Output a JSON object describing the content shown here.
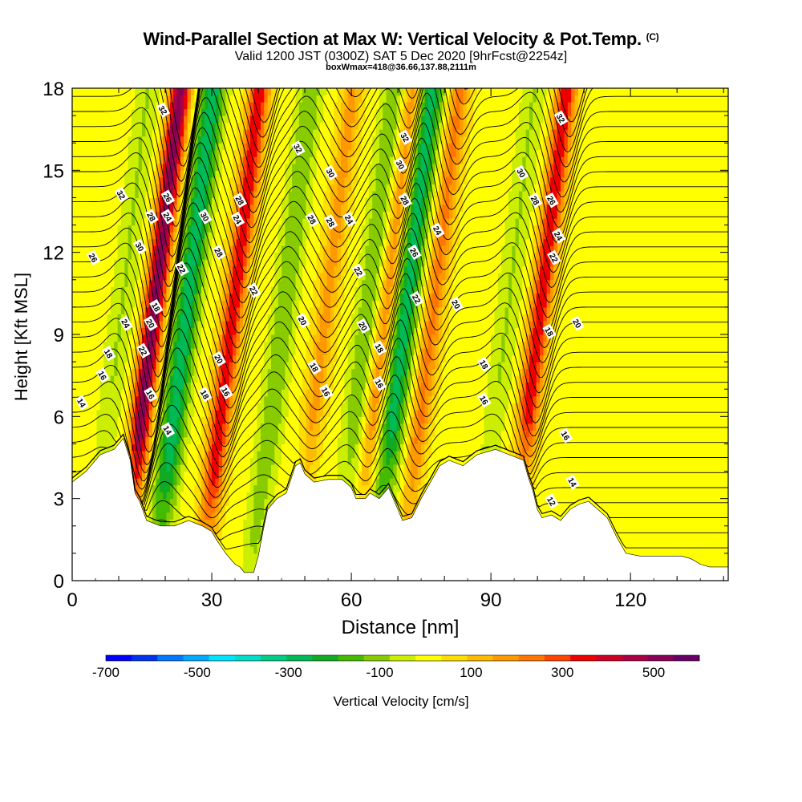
{
  "header": {
    "title": "Wind-Parallel Section at Max W: Vertical Velocity & Pot.Temp.",
    "copyright": "(C)",
    "line2": "Valid 1200 JST (0300Z) SAT 5 Dec 2020 [9hrFcst@2254z]",
    "line3": "boxWmax=418@36.66,137.88,2111m"
  },
  "chart_data": {
    "type": "heatmap",
    "xlabel": "Distance [nm]",
    "ylabel": "Height [Kft MSL]",
    "xlim": [
      0,
      141
    ],
    "ylim": [
      0,
      18
    ],
    "x_ticks": [
      "0",
      "30",
      "60",
      "90",
      "120"
    ],
    "x_tick_values": [
      0,
      30,
      60,
      90,
      120
    ],
    "y_ticks": [
      "0",
      "3",
      "6",
      "9",
      "12",
      "15",
      "18"
    ],
    "y_tick_values": [
      0,
      3,
      6,
      9,
      12,
      15,
      18
    ],
    "colorbar": {
      "label": "Vertical Velocity [cm/s]",
      "tick_labels": [
        "-700",
        "-500",
        "-300",
        "-100",
        "100",
        "300",
        "500"
      ],
      "tick_values": [
        -700,
        -500,
        -300,
        -100,
        100,
        300,
        500
      ],
      "range": [
        -700,
        600
      ],
      "colors": [
        "#0000ff",
        "#0033ee",
        "#0077ff",
        "#00aaff",
        "#00e5ff",
        "#00ddc8",
        "#00cc88",
        "#00bb55",
        "#11aa22",
        "#44bb00",
        "#88cc00",
        "#ccee00",
        "#ffff00",
        "#ffdd00",
        "#ffbb00",
        "#ff9900",
        "#ff7700",
        "#ff4400",
        "#ee0000",
        "#cc0022",
        "#aa0044",
        "#880055",
        "#660066"
      ]
    },
    "terrain_kft": [
      [
        0,
        3.6
      ],
      [
        3,
        4.0
      ],
      [
        6,
        4.6
      ],
      [
        9,
        4.8
      ],
      [
        11,
        5.2
      ],
      [
        12.5,
        4.4
      ],
      [
        13.5,
        3.2
      ],
      [
        14.5,
        2.9
      ],
      [
        16,
        2.2
      ],
      [
        19,
        2.0
      ],
      [
        22,
        2.0
      ],
      [
        25,
        2.2
      ],
      [
        28,
        2.0
      ],
      [
        30,
        1.8
      ],
      [
        31,
        1.5
      ],
      [
        33,
        1.0
      ],
      [
        35,
        0.6
      ],
      [
        36,
        0.5
      ],
      [
        37,
        0.3
      ],
      [
        39,
        0.3
      ],
      [
        40,
        0.9
      ],
      [
        41,
        1.8
      ],
      [
        42,
        2.6
      ],
      [
        44,
        3.0
      ],
      [
        46,
        3.2
      ],
      [
        47,
        3.7
      ],
      [
        48,
        4.2
      ],
      [
        49,
        4.3
      ],
      [
        50,
        3.9
      ],
      [
        52,
        3.6
      ],
      [
        55,
        3.7
      ],
      [
        58,
        3.7
      ],
      [
        60,
        3.4
      ],
      [
        61,
        3.0
      ],
      [
        63,
        3.0
      ],
      [
        64,
        3.2
      ],
      [
        66,
        3.0
      ],
      [
        68,
        3.4
      ],
      [
        70,
        2.6
      ],
      [
        71,
        2.2
      ],
      [
        73,
        2.3
      ],
      [
        75,
        3.0
      ],
      [
        77,
        3.6
      ],
      [
        79,
        4.2
      ],
      [
        81,
        4.4
      ],
      [
        84,
        4.2
      ],
      [
        87,
        4.6
      ],
      [
        91,
        4.8
      ],
      [
        94,
        4.6
      ],
      [
        97,
        4.4
      ],
      [
        98,
        3.8
      ],
      [
        99,
        3.3
      ],
      [
        100,
        2.6
      ],
      [
        101,
        2.3
      ],
      [
        103,
        2.4
      ],
      [
        105,
        2.2
      ],
      [
        107,
        2.6
      ],
      [
        109,
        2.8
      ],
      [
        111,
        2.9
      ],
      [
        113,
        2.6
      ],
      [
        115,
        2.3
      ],
      [
        117,
        1.6
      ],
      [
        119,
        1.0
      ],
      [
        122,
        0.9
      ],
      [
        125,
        0.9
      ],
      [
        128,
        0.9
      ],
      [
        131,
        0.9
      ],
      [
        133,
        0.8
      ],
      [
        135,
        0.6
      ],
      [
        137,
        0.5
      ],
      [
        140,
        0.5
      ],
      [
        141,
        0.5
      ]
    ],
    "updraft_bands": [
      {
        "x": 17,
        "peak_cm_s": 500
      },
      {
        "x": 34,
        "peak_cm_s": 350
      },
      {
        "x": 54,
        "peak_cm_s": 150
      },
      {
        "x": 67,
        "peak_cm_s": 200
      },
      {
        "x": 77,
        "peak_cm_s": 200
      },
      {
        "x": 100,
        "peak_cm_s": 350
      }
    ],
    "downdraft_bands": [
      {
        "x": 10,
        "peak_cm_s": -100
      },
      {
        "x": 24,
        "peak_cm_s": -300
      },
      {
        "x": 45,
        "peak_cm_s": -150
      },
      {
        "x": 63,
        "peak_cm_s": -150
      },
      {
        "x": 71,
        "peak_cm_s": -300
      },
      {
        "x": 93,
        "peak_cm_s": -100
      }
    ],
    "theta_contours": [
      "12",
      "14",
      "16",
      "18",
      "20",
      "22",
      "24",
      "26",
      "28",
      "30",
      "32"
    ],
    "contour_labels": [
      {
        "text": "32",
        "x": 19.5,
        "y": 17.2
      },
      {
        "text": "32",
        "x": 10.5,
        "y": 14.1
      },
      {
        "text": "26",
        "x": 20.5,
        "y": 14.0
      },
      {
        "text": "28",
        "x": 17,
        "y": 13.3
      },
      {
        "text": "24",
        "x": 20.5,
        "y": 13.3
      },
      {
        "text": "30",
        "x": 28.5,
        "y": 13.3
      },
      {
        "text": "28",
        "x": 36,
        "y": 13.9
      },
      {
        "text": "24",
        "x": 35.5,
        "y": 13.2
      },
      {
        "text": "28",
        "x": 31.5,
        "y": 12.0
      },
      {
        "text": "26",
        "x": 4.5,
        "y": 11.8
      },
      {
        "text": "30",
        "x": 14.5,
        "y": 12.2
      },
      {
        "text": "22",
        "x": 23.5,
        "y": 11.4
      },
      {
        "text": "22",
        "x": 39,
        "y": 10.6
      },
      {
        "text": "18",
        "x": 18,
        "y": 10.0
      },
      {
        "text": "24",
        "x": 11.5,
        "y": 9.4
      },
      {
        "text": "20",
        "x": 16.8,
        "y": 9.4
      },
      {
        "text": "22",
        "x": 15.2,
        "y": 8.4
      },
      {
        "text": "18",
        "x": 7.8,
        "y": 8.3
      },
      {
        "text": "20",
        "x": 31.5,
        "y": 8.1
      },
      {
        "text": "16",
        "x": 6.5,
        "y": 7.5
      },
      {
        "text": "18",
        "x": 28.5,
        "y": 6.8
      },
      {
        "text": "16",
        "x": 33,
        "y": 6.9
      },
      {
        "text": "16",
        "x": 16.8,
        "y": 6.8
      },
      {
        "text": "14",
        "x": 2,
        "y": 6.5
      },
      {
        "text": "14",
        "x": 20.5,
        "y": 5.5
      },
      {
        "text": "32",
        "x": 48.5,
        "y": 15.8
      },
      {
        "text": "30",
        "x": 55.5,
        "y": 14.9
      },
      {
        "text": "28",
        "x": 51.5,
        "y": 13.2
      },
      {
        "text": "28",
        "x": 55.5,
        "y": 13.1
      },
      {
        "text": "24",
        "x": 59.5,
        "y": 13.2
      },
      {
        "text": "22",
        "x": 61.5,
        "y": 11.3
      },
      {
        "text": "20",
        "x": 49.5,
        "y": 9.5
      },
      {
        "text": "20",
        "x": 62.5,
        "y": 9.3
      },
      {
        "text": "18",
        "x": 52,
        "y": 7.8
      },
      {
        "text": "16",
        "x": 54.5,
        "y": 6.9
      },
      {
        "text": "18",
        "x": 66,
        "y": 8.5
      },
      {
        "text": "16",
        "x": 66,
        "y": 7.2
      },
      {
        "text": "32",
        "x": 71.5,
        "y": 16.2
      },
      {
        "text": "30",
        "x": 70.5,
        "y": 15.2
      },
      {
        "text": "28",
        "x": 71.5,
        "y": 13.9
      },
      {
        "text": "26",
        "x": 73.5,
        "y": 12.0
      },
      {
        "text": "24",
        "x": 78.5,
        "y": 12.8
      },
      {
        "text": "22",
        "x": 74,
        "y": 10.3
      },
      {
        "text": "20",
        "x": 82.5,
        "y": 10.1
      },
      {
        "text": "18",
        "x": 88.5,
        "y": 7.9
      },
      {
        "text": "16",
        "x": 88.5,
        "y": 6.6
      },
      {
        "text": "32",
        "x": 105,
        "y": 16.9
      },
      {
        "text": "30",
        "x": 96.5,
        "y": 14.9
      },
      {
        "text": "28",
        "x": 99.5,
        "y": 13.9
      },
      {
        "text": "26",
        "x": 103,
        "y": 13.9
      },
      {
        "text": "24",
        "x": 104.5,
        "y": 12.6
      },
      {
        "text": "22",
        "x": 103.5,
        "y": 11.8
      },
      {
        "text": "18",
        "x": 102.5,
        "y": 9.1
      },
      {
        "text": "20",
        "x": 108.5,
        "y": 9.4
      },
      {
        "text": "16",
        "x": 106,
        "y": 5.3
      },
      {
        "text": "14",
        "x": 107.5,
        "y": 3.6
      },
      {
        "text": "12",
        "x": 103,
        "y": 2.9
      }
    ]
  }
}
